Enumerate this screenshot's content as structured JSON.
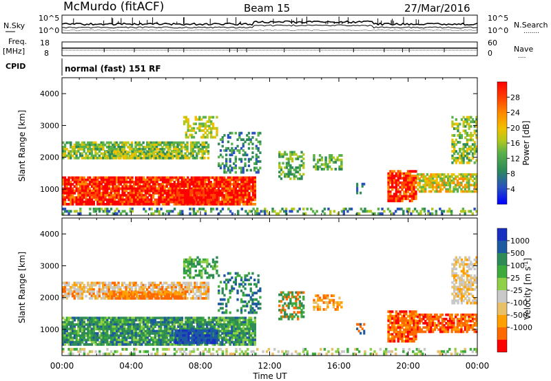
{
  "header": {
    "station": "McMurdo (fitACF)",
    "beam": "Beam 15",
    "date": "27/Mar/2016"
  },
  "noise_panel": {
    "left_label": "N.Sky",
    "right_label": "N.Search",
    "right_label_dots": "........",
    "left_ticks": [
      "10^5",
      "10^0"
    ],
    "right_ticks": [
      "10^5",
      "10^0"
    ]
  },
  "freq_panel": {
    "left_label_1": "Freq.",
    "left_label_2": "[MHz]",
    "left_ticks": [
      "18",
      "8"
    ],
    "right_label": "Nave",
    "right_label_dots": "....",
    "right_ticks": [
      "60",
      "0"
    ]
  },
  "cpid": {
    "label": "CPID",
    "value": "normal (fast) 151 RF"
  },
  "chart_data": [
    {
      "type": "heatmap",
      "title": "",
      "ylabel": "Slant Range [km]",
      "xlabel": "",
      "y_ticks": [
        "4000",
        "3000",
        "2000",
        "1000"
      ],
      "ylim": [
        180,
        4500
      ],
      "colorbar": {
        "label": "Power [dB]",
        "ticks": [
          "28",
          "24",
          "20",
          "16",
          "12",
          "8",
          "4"
        ],
        "range": [
          0,
          32
        ]
      },
      "features": [
        {
          "time": [
            0,
            11.2
          ],
          "range": [
            500,
            1400
          ],
          "value": "28-32 dB"
        },
        {
          "time": [
            0,
            8.5
          ],
          "range": [
            1950,
            2500
          ],
          "value": "12-20 dB"
        },
        {
          "time": [
            12.5,
            17
          ],
          "range": [
            1200,
            2300
          ],
          "value": "8-16 dB"
        },
        {
          "time": [
            18.8,
            21
          ],
          "range": [
            600,
            1600
          ],
          "value": "28-32 dB"
        },
        {
          "time": [
            21,
            24
          ],
          "range": [
            900,
            1500
          ],
          "value": "16-24 dB"
        },
        {
          "time": [
            22.5,
            24
          ],
          "range": [
            1800,
            3300
          ],
          "value": "12-20 dB"
        }
      ]
    },
    {
      "type": "heatmap",
      "title": "",
      "ylabel": "Slant Range [km]",
      "xlabel": "Time UT",
      "y_ticks": [
        "4000",
        "3000",
        "2000",
        "1000"
      ],
      "x_ticks": [
        "00:00",
        "04:00",
        "08:00",
        "12:00",
        "16:00",
        "20:00",
        "00:00"
      ],
      "ylim": [
        180,
        4500
      ],
      "colorbar": {
        "label": "Velocity [m s",
        "label_sup": "-1",
        "label_end": "]",
        "ticks": [
          "1000",
          "500",
          "100",
          "25",
          "-25",
          "-100",
          "-500",
          "-1000"
        ]
      },
      "features": [
        {
          "time": [
            0,
            11.2
          ],
          "range": [
            500,
            1500
          ],
          "value": "100-500 m/s"
        },
        {
          "time": [
            6.5,
            9
          ],
          "range": [
            500,
            1000
          ],
          "value": "500-1000 m/s"
        },
        {
          "time": [
            0,
            7.5
          ],
          "range": [
            2100,
            2500
          ],
          "value": "-25 to 25 m/s"
        },
        {
          "time": [
            2.5,
            7
          ],
          "range": [
            1950,
            2200
          ],
          "value": "-100 to -500 m/s"
        },
        {
          "time": [
            18.8,
            24
          ],
          "range": [
            600,
            1800
          ],
          "value": "-100 to -500 m/s"
        },
        {
          "time": [
            22.5,
            24
          ],
          "range": [
            2200,
            3300
          ],
          "value": "-25 to 25 m/s"
        }
      ]
    }
  ],
  "colors": {
    "power_scale": [
      "#0000ff",
      "#2a52be",
      "#2e8b57",
      "#5ab04a",
      "#b2c81e",
      "#f0c000",
      "#ff8c00",
      "#ff4500",
      "#ff0000"
    ],
    "velocity_scale": [
      "#ff0000",
      "#ff6a00",
      "#ffa000",
      "#e8c068",
      "#c8c8c8",
      "#90d048",
      "#3caa3c",
      "#2e8b57",
      "#1e5aa0",
      "#1830c0"
    ]
  }
}
